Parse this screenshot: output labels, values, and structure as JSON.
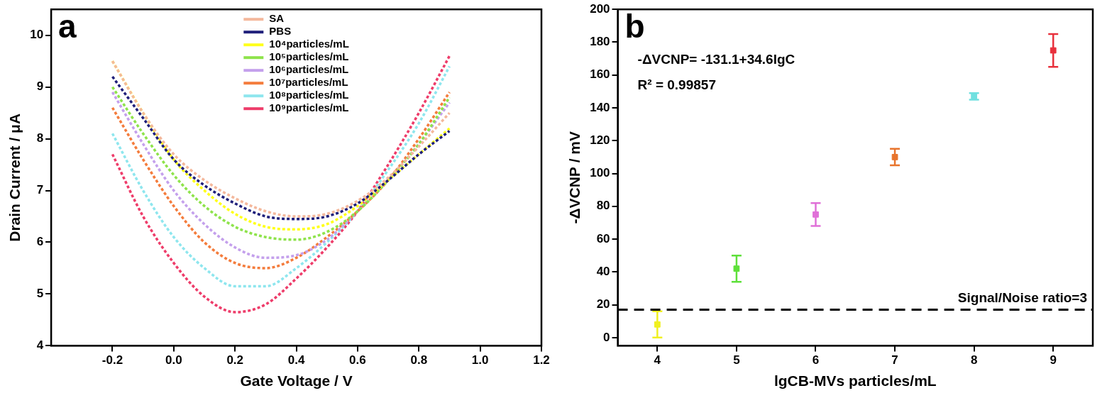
{
  "chart_data": [
    {
      "type": "line",
      "title": "a",
      "x_label": "Gate Voltage / V",
      "y_label": "Drain Current / μA",
      "x": [
        -0.2,
        -0.1,
        0,
        0.1,
        0.2,
        0.3,
        0.4,
        0.5,
        0.6,
        0.7,
        0.8,
        0.9
      ],
      "series": [
        {
          "name": "SA",
          "color": "#f4b89c",
          "values": [
            9.5,
            8.5,
            7.7,
            7.2,
            6.85,
            6.6,
            6.5,
            6.55,
            6.8,
            7.25,
            7.85,
            8.5
          ]
        },
        {
          "name": "PBS",
          "color": "#1f1f7a",
          "values": [
            9.2,
            8.4,
            7.6,
            7.1,
            6.75,
            6.5,
            6.45,
            6.5,
            6.75,
            7.2,
            7.7,
            8.15
          ]
        },
        {
          "name": "10⁴particles/mL",
          "color": "#ffff1a",
          "values": [
            9.5,
            8.5,
            7.6,
            7.0,
            6.55,
            6.3,
            6.25,
            6.35,
            6.7,
            7.2,
            7.7,
            8.2
          ]
        },
        {
          "name": "10⁵particles/mL",
          "color": "#8ee34b",
          "values": [
            9.0,
            8.1,
            7.3,
            6.7,
            6.3,
            6.1,
            6.05,
            6.2,
            6.6,
            7.2,
            7.9,
            8.8
          ]
        },
        {
          "name": "10⁶particles/mL",
          "color": "#c4a0ec",
          "values": [
            8.9,
            7.9,
            7.0,
            6.35,
            5.9,
            5.7,
            5.75,
            6.05,
            6.6,
            7.2,
            7.9,
            8.7
          ]
        },
        {
          "name": "10⁷particles/mL",
          "color": "#f47c3c",
          "values": [
            8.6,
            7.6,
            6.7,
            6.0,
            5.6,
            5.5,
            5.7,
            6.1,
            6.6,
            7.2,
            8.0,
            8.9
          ]
        },
        {
          "name": "10⁸particles/mL",
          "color": "#8ee6ee",
          "values": [
            8.1,
            7.0,
            6.1,
            5.5,
            5.15,
            5.15,
            5.5,
            6.0,
            6.6,
            7.4,
            8.3,
            9.4
          ]
        },
        {
          "name": "10⁹particles/mL",
          "color": "#ee3c6a",
          "values": [
            7.7,
            6.5,
            5.6,
            4.95,
            4.65,
            4.8,
            5.3,
            5.9,
            6.6,
            7.5,
            8.5,
            9.6
          ]
        }
      ],
      "xlim": [
        -0.4,
        1.2
      ],
      "xticks": [
        -0.2,
        {
          "value": 0,
          "label": "0.0"
        },
        0.2,
        0.4,
        0.6,
        0.8,
        {
          "value": 1,
          "label": "1.0"
        },
        1.2
      ],
      "ylim": [
        4,
        10.5
      ],
      "yticks": [
        4,
        5,
        6,
        7,
        8,
        9,
        10
      ],
      "grid": false,
      "legend": "top",
      "line_style": "dashed"
    },
    {
      "type": "scatter",
      "title": "b",
      "x_label": "lgCB-MVs particles/mL",
      "y_label": "-ΔVCNP / mV",
      "x": [
        4,
        5,
        6,
        7,
        8,
        9
      ],
      "values": [
        8,
        42,
        75,
        110,
        147,
        175
      ],
      "errors": [
        8,
        8,
        7,
        5,
        2,
        10
      ],
      "colors": [
        "#f0f020",
        "#5ee03a",
        "#e070d8",
        "#e8742c",
        "#70e0e0",
        "#e8303c"
      ],
      "marker": "square",
      "xlim": [
        3.5,
        9.5
      ],
      "xticks": [
        4,
        5,
        6,
        7,
        8,
        9
      ],
      "ylim": [
        -5,
        200
      ],
      "yticks": [
        0,
        20,
        40,
        60,
        80,
        100,
        120,
        140,
        160,
        180,
        200
      ],
      "grid": false,
      "annotations": [
        "-ΔVCNP= -131.1+34.6lgC",
        "R² = 0.99857"
      ],
      "threshold": {
        "value": 17,
        "label": "Signal/Noise ratio=3",
        "line_style": "dashed"
      }
    }
  ]
}
